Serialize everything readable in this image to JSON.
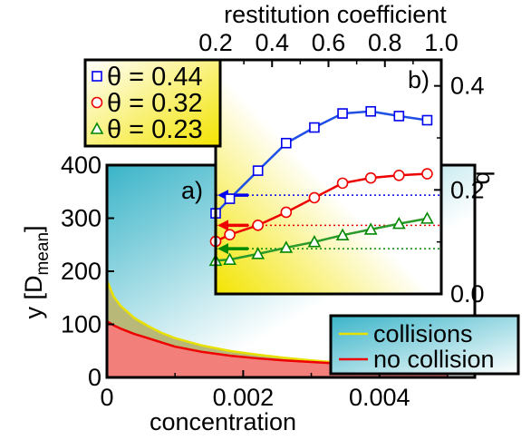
{
  "chart_data": [
    {
      "panel": "a)",
      "type": "area",
      "xlabel": "concentration",
      "ylabel": "y [D",
      "ylabel_sub": "mean",
      "ylabel_close": "]",
      "xlim": [
        0,
        0.0054
      ],
      "ylim": [
        0,
        400
      ],
      "xticks": [
        0,
        0.002,
        0.004
      ],
      "xtick_labels": [
        "0",
        "0.002",
        "0.004"
      ],
      "yticks": [
        0,
        100,
        200,
        300,
        400
      ],
      "ytick_labels": [
        "0",
        "100",
        "200",
        "300",
        "400"
      ],
      "grid": false,
      "legend_position": "bottom-right",
      "series": [
        {
          "name": "collisions",
          "color": "#e8e000",
          "fill": "#b8b878",
          "x": [
            1e-05,
            0.0001,
            0.0002,
            0.0004,
            0.0006,
            0.0008,
            0.001,
            0.0014,
            0.0018,
            0.0022,
            0.0026,
            0.003,
            0.0034,
            0.0038,
            0.0042,
            0.0046,
            0.005
          ],
          "values": [
            180,
            152,
            135,
            112,
            97,
            84,
            74,
            60,
            50,
            43,
            37,
            32,
            28,
            25,
            22,
            20,
            18
          ]
        },
        {
          "name": "no collision",
          "color": "#ee0000",
          "fill": "#f27f7a",
          "x": [
            1e-05,
            0.0001,
            0.0002,
            0.0004,
            0.0006,
            0.0008,
            0.001,
            0.0014,
            0.0018,
            0.0022,
            0.0026,
            0.003,
            0.0034,
            0.0038,
            0.0042,
            0.0046,
            0.005
          ],
          "values": [
            105,
            98,
            92,
            82,
            74,
            66,
            58,
            48,
            41,
            36,
            32,
            29,
            26,
            24,
            22,
            20,
            18
          ]
        }
      ],
      "background_gradient": [
        "#3ab4c8",
        "#ffffff"
      ]
    },
    {
      "panel": "b)",
      "type": "line",
      "xlabel": "restitution coefficient",
      "ylabel": "q",
      "xlim": [
        0.2,
        1.0
      ],
      "ylim": [
        0.0,
        0.45
      ],
      "xticks": [
        0.2,
        0.4,
        0.6,
        0.8,
        1.0
      ],
      "xtick_labels": [
        "0.2",
        "0.4",
        "0.6",
        "0.8",
        "1.0"
      ],
      "yticks": [
        0.0,
        0.2,
        0.4
      ],
      "ytick_labels": [
        "0.0",
        "0.2",
        "0.4"
      ],
      "x_axis_position": "top",
      "y_axis_position": "right",
      "grid": false,
      "legend_position": "top-left",
      "background_gradient": [
        "#f3e400",
        "#ffffff"
      ],
      "series": [
        {
          "name": "θ = 0.44",
          "marker": "square",
          "color": "#0000ee",
          "line_color": "#1f4fe6",
          "x": [
            0.2,
            0.25,
            0.35,
            0.45,
            0.55,
            0.65,
            0.75,
            0.85,
            0.95
          ],
          "values": [
            0.155,
            0.183,
            0.237,
            0.29,
            0.32,
            0.347,
            0.351,
            0.342,
            0.334
          ],
          "reference": 0.19
        },
        {
          "name": "θ = 0.32",
          "marker": "circle",
          "color": "#ee0000",
          "line_color": "#ee0000",
          "x": [
            0.2,
            0.25,
            0.35,
            0.45,
            0.55,
            0.65,
            0.75,
            0.85,
            0.95
          ],
          "values": [
            0.101,
            0.114,
            0.132,
            0.157,
            0.185,
            0.213,
            0.223,
            0.228,
            0.231
          ],
          "reference": 0.132
        },
        {
          "name": "θ = 0.23",
          "marker": "triangle",
          "color": "#008800",
          "line_color": "#2a9a2a",
          "x": [
            0.2,
            0.25,
            0.35,
            0.45,
            0.55,
            0.65,
            0.75,
            0.85,
            0.95
          ],
          "values": [
            0.064,
            0.066,
            0.077,
            0.089,
            0.1,
            0.113,
            0.124,
            0.135,
            0.145
          ],
          "reference": 0.087
        }
      ]
    }
  ]
}
